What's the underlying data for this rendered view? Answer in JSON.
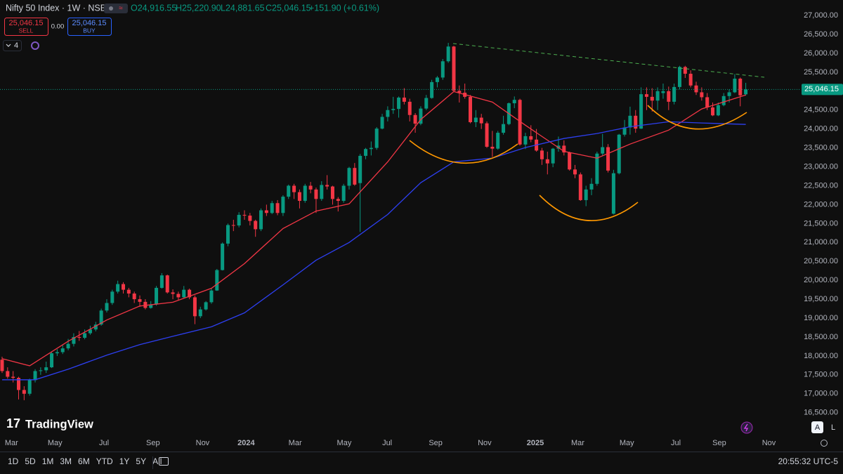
{
  "header": {
    "symbol": "Nifty 50 Index · 1W · NSE",
    "ohlc": [
      "O24,916.55",
      "H25,220.90",
      "L24,881.65",
      "C25,046.15",
      "+151.90 (+0.61%)"
    ],
    "sell_price": "25,046.15",
    "sell_label": "SELL",
    "spread": "0.00",
    "buy_price": "25,046.15",
    "buy_label": "BUY",
    "indicators_count": "4"
  },
  "brand": "TradingView",
  "toolbar": {
    "timeframes": [
      "1D",
      "5D",
      "1M",
      "3M",
      "6M",
      "YTD",
      "1Y",
      "5Y",
      "All"
    ],
    "clock": "20:55:32 UTC-5",
    "auto": "A",
    "log": "L"
  },
  "chart_data": {
    "type": "candlestick",
    "up_color": "#089981",
    "down_color": "#f23645",
    "grid": false,
    "ylim": [
      15900,
      27410
    ],
    "xlim": [
      -0.38,
      145
    ],
    "yticks": [
      {
        "value": 16500,
        "label": "16,500.00"
      },
      {
        "value": 17000,
        "label": "17,000.00"
      },
      {
        "value": 17500,
        "label": "17,500.00"
      },
      {
        "value": 18000,
        "label": "18,000.00"
      },
      {
        "value": 18500,
        "label": "18,500.00"
      },
      {
        "value": 19000,
        "label": "19,000.00"
      },
      {
        "value": 19500,
        "label": "19,500.00"
      },
      {
        "value": 20000,
        "label": "20,000.00"
      },
      {
        "value": 20500,
        "label": "20,500.00"
      },
      {
        "value": 21000,
        "label": "21,000.00"
      },
      {
        "value": 21500,
        "label": "21,500.00"
      },
      {
        "value": 22000,
        "label": "22,000.00"
      },
      {
        "value": 22500,
        "label": "22,500.00"
      },
      {
        "value": 23000,
        "label": "23,000.00"
      },
      {
        "value": 23500,
        "label": "23,500.00"
      },
      {
        "value": 24000,
        "label": "24,000.00"
      },
      {
        "value": 24500,
        "label": "24,500.00"
      },
      {
        "value": 25000,
        "label": "25,000.00"
      },
      {
        "value": 25500,
        "label": "25,500.00"
      },
      {
        "value": 26000,
        "label": "26,000.00"
      },
      {
        "value": 26500,
        "label": "26,500.00"
      },
      {
        "value": 27000,
        "label": "27,000.00"
      }
    ],
    "xticks": [
      {
        "value": 1.7,
        "label": "Mar"
      },
      {
        "value": 9.6,
        "label": "May"
      },
      {
        "value": 18.5,
        "label": "Jul"
      },
      {
        "value": 27.4,
        "label": "Sep"
      },
      {
        "value": 36.4,
        "label": "Nov"
      },
      {
        "value": 44.3,
        "label": "2024"
      },
      {
        "value": 53.2,
        "label": "Mar"
      },
      {
        "value": 62.1,
        "label": "May"
      },
      {
        "value": 69.9,
        "label": "Jul"
      },
      {
        "value": 78.7,
        "label": "Sep"
      },
      {
        "value": 87.6,
        "label": "Nov"
      },
      {
        "value": 96.8,
        "label": "2025"
      },
      {
        "value": 104.5,
        "label": "Mar"
      },
      {
        "value": 113.4,
        "label": "May"
      },
      {
        "value": 122.3,
        "label": "Jul"
      },
      {
        "value": 130.2,
        "label": "Sep"
      },
      {
        "value": 139.2,
        "label": "Nov"
      }
    ],
    "last_price": {
      "value": 25046.15,
      "label": "25,046.15"
    },
    "ohlc": [
      [
        17900,
        17980,
        17550,
        17600
      ],
      [
        17600,
        17700,
        17400,
        17450
      ],
      [
        17450,
        17600,
        17300,
        17420
      ],
      [
        17420,
        17450,
        16850,
        17100
      ],
      [
        17100,
        17200,
        16830,
        17000
      ],
      [
        17000,
        17400,
        16950,
        17360
      ],
      [
        17360,
        17650,
        17300,
        17600
      ],
      [
        17600,
        17700,
        17500,
        17620
      ],
      [
        17620,
        17850,
        17550,
        17700
      ],
      [
        17700,
        18100,
        17680,
        18070
      ],
      [
        18070,
        18180,
        18000,
        18100
      ],
      [
        18100,
        18300,
        18050,
        18200
      ],
      [
        18200,
        18450,
        18150,
        18320
      ],
      [
        18320,
        18600,
        18250,
        18500
      ],
      [
        18500,
        18660,
        18400,
        18480
      ],
      [
        18480,
        18700,
        18440,
        18600
      ],
      [
        18600,
        18800,
        18560,
        18700
      ],
      [
        18700,
        18900,
        18650,
        18830
      ],
      [
        18830,
        19250,
        18800,
        19200
      ],
      [
        19200,
        19500,
        19150,
        19400
      ],
      [
        19400,
        19750,
        19350,
        19700
      ],
      [
        19700,
        19990,
        19650,
        19900
      ],
      [
        19900,
        19950,
        19650,
        19750
      ],
      [
        19750,
        19800,
        19550,
        19650
      ],
      [
        19650,
        19700,
        19400,
        19500
      ],
      [
        19500,
        19600,
        19300,
        19430
      ],
      [
        19430,
        19500,
        19230,
        19270
      ],
      [
        19270,
        19450,
        19250,
        19360
      ],
      [
        19360,
        19850,
        19330,
        19800
      ],
      [
        19800,
        20190,
        19780,
        20130
      ],
      [
        20130,
        20150,
        19650,
        19680
      ],
      [
        19680,
        19760,
        19500,
        19640
      ],
      [
        19640,
        19700,
        19480,
        19550
      ],
      [
        19550,
        19850,
        19520,
        19750
      ],
      [
        19750,
        19780,
        19500,
        19550
      ],
      [
        19550,
        19600,
        18840,
        19050
      ],
      [
        19050,
        19300,
        19000,
        19230
      ],
      [
        19230,
        19450,
        19200,
        19420
      ],
      [
        19420,
        19800,
        19380,
        19730
      ],
      [
        19730,
        20300,
        19720,
        20270
      ],
      [
        20270,
        21000,
        20260,
        20970
      ],
      [
        20970,
        21500,
        20900,
        21460
      ],
      [
        21460,
        21600,
        21300,
        21450
      ],
      [
        21450,
        21800,
        21400,
        21730
      ],
      [
        21730,
        21850,
        21600,
        21710
      ],
      [
        21710,
        21780,
        21450,
        21570
      ],
      [
        21570,
        21600,
        21150,
        21350
      ],
      [
        21350,
        21900,
        21300,
        21850
      ],
      [
        21850,
        22000,
        21700,
        21780
      ],
      [
        21780,
        22100,
        21750,
        22040
      ],
      [
        22040,
        22120,
        21720,
        21780
      ],
      [
        21780,
        22250,
        21700,
        22210
      ],
      [
        22210,
        22530,
        22150,
        22500
      ],
      [
        22500,
        22550,
        22150,
        22330
      ],
      [
        22330,
        22400,
        21900,
        22100
      ],
      [
        22100,
        22550,
        22050,
        22500
      ],
      [
        22500,
        22600,
        22300,
        22400
      ],
      [
        22400,
        22450,
        21780,
        22150
      ],
      [
        22150,
        22620,
        22100,
        22520
      ],
      [
        22520,
        22780,
        22400,
        22480
      ],
      [
        22480,
        22500,
        22000,
        22150
      ],
      [
        22150,
        22200,
        21820,
        22100
      ],
      [
        22100,
        22550,
        22050,
        22500
      ],
      [
        22500,
        23000,
        22400,
        22970
      ],
      [
        22970,
        23100,
        22500,
        22530
      ],
      [
        22570,
        23340,
        21280,
        23290
      ],
      [
        23290,
        23500,
        23200,
        23470
      ],
      [
        23470,
        23670,
        23300,
        23500
      ],
      [
        23500,
        24050,
        23450,
        24010
      ],
      [
        24010,
        24400,
        23990,
        24320
      ],
      [
        24320,
        24600,
        24200,
        24500
      ],
      [
        24500,
        24850,
        24400,
        24530
      ],
      [
        24530,
        24860,
        24300,
        24830
      ],
      [
        24830,
        25080,
        24650,
        24720
      ],
      [
        24720,
        24800,
        24200,
        24370
      ],
      [
        24370,
        24420,
        23900,
        24140
      ],
      [
        24140,
        24600,
        24100,
        24540
      ],
      [
        24540,
        24900,
        24500,
        24820
      ],
      [
        24820,
        25300,
        24800,
        25240
      ],
      [
        25240,
        25400,
        25100,
        25360
      ],
      [
        25360,
        25850,
        25300,
        25790
      ],
      [
        25790,
        26277,
        25750,
        26180
      ],
      [
        26180,
        26200,
        24990,
        25010
      ],
      [
        25010,
        25150,
        24700,
        24960
      ],
      [
        24960,
        25200,
        24800,
        24850
      ],
      [
        24850,
        24900,
        24150,
        24180
      ],
      [
        24180,
        24500,
        24050,
        24300
      ],
      [
        24300,
        24400,
        24000,
        24150
      ],
      [
        24150,
        24200,
        23500,
        23530
      ],
      [
        23530,
        23950,
        23260,
        23480
      ],
      [
        23480,
        23950,
        23450,
        23900
      ],
      [
        23900,
        24350,
        23850,
        24130
      ],
      [
        24130,
        24700,
        24100,
        24680
      ],
      [
        24680,
        24860,
        24550,
        24770
      ],
      [
        24770,
        24800,
        23560,
        23590
      ],
      [
        23590,
        23900,
        23470,
        23810
      ],
      [
        23810,
        24100,
        23650,
        23720
      ],
      [
        23720,
        24000,
        23400,
        23430
      ],
      [
        23430,
        23500,
        23050,
        23200
      ],
      [
        23200,
        23400,
        22800,
        23090
      ],
      [
        23090,
        23500,
        22990,
        23480
      ],
      [
        23480,
        23800,
        23400,
        23560
      ],
      [
        23560,
        23700,
        23300,
        23380
      ],
      [
        23380,
        23400,
        22900,
        22930
      ],
      [
        22930,
        23050,
        22700,
        22800
      ],
      [
        22800,
        22850,
        22100,
        22120
      ],
      [
        22120,
        22500,
        21960,
        22400
      ],
      [
        22400,
        22700,
        22250,
        22550
      ],
      [
        22550,
        23400,
        22500,
        23350
      ],
      [
        23350,
        23870,
        23300,
        23520
      ],
      [
        23520,
        23600,
        22850,
        22900
      ],
      [
        21760,
        22920,
        21740,
        22830
      ],
      [
        22830,
        23870,
        22800,
        23850
      ],
      [
        23850,
        24240,
        23800,
        24040
      ],
      [
        24040,
        24590,
        23850,
        24350
      ],
      [
        24350,
        24500,
        23900,
        24010
      ],
      [
        24010,
        25100,
        24000,
        24920
      ],
      [
        24920,
        25100,
        24500,
        24850
      ],
      [
        24850,
        25080,
        24460,
        24750
      ],
      [
        24750,
        25100,
        24500,
        25000
      ],
      [
        24950,
        25200,
        24800,
        25000
      ],
      [
        25000,
        25120,
        24500,
        24720
      ],
      [
        24720,
        25200,
        24650,
        25110
      ],
      [
        25110,
        25670,
        25050,
        25640
      ],
      [
        25640,
        25670,
        25350,
        25460
      ],
      [
        25460,
        25550,
        25100,
        25150
      ],
      [
        25150,
        25250,
        24900,
        24970
      ],
      [
        24970,
        25100,
        24750,
        24840
      ],
      [
        24840,
        24950,
        24500,
        24570
      ],
      [
        24570,
        24700,
        24340,
        24360
      ],
      [
        24360,
        24700,
        24340,
        24630
      ],
      [
        24630,
        24950,
        24600,
        24870
      ],
      [
        24870,
        25050,
        24700,
        24970
      ],
      [
        24970,
        25450,
        24950,
        25330
      ],
      [
        25330,
        25360,
        24600,
        24890
      ],
      [
        24916.55,
        25220.9,
        24881.65,
        25046.15
      ]
    ],
    "lines": [
      {
        "color": "#f23645",
        "x": [
          0,
          5,
          12,
          19,
          25,
          31,
          38,
          44,
          51,
          57,
          63,
          70,
          76,
          82,
          89,
          95,
          102,
          108,
          114,
          121,
          127,
          135
        ],
        "values": [
          17930,
          17740,
          18390,
          18950,
          19320,
          19420,
          19790,
          20440,
          21370,
          21830,
          22020,
          23130,
          24250,
          24990,
          24710,
          24100,
          23410,
          23230,
          23600,
          23970,
          24530,
          24900
        ]
      },
      {
        "color": "#2d3ff0",
        "x": [
          0,
          6,
          12,
          19,
          25,
          31,
          38,
          44,
          51,
          57,
          63,
          70,
          76,
          82,
          89,
          95,
          102,
          108,
          114,
          121,
          127,
          135
        ],
        "values": [
          17370,
          17370,
          17650,
          18020,
          18300,
          18520,
          18770,
          19140,
          19880,
          20530,
          21000,
          21740,
          22580,
          23130,
          23230,
          23510,
          23750,
          23880,
          24060,
          24190,
          24160,
          24120
        ]
      }
    ]
  }
}
